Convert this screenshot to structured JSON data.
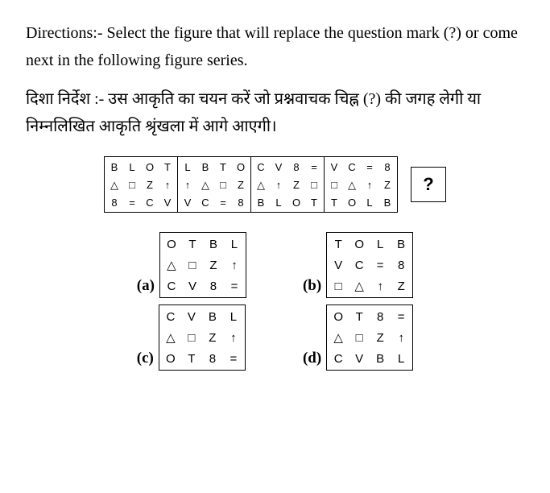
{
  "directions_en": "Directions:- Select the figure that will replace the question mark (?) or come next in the following figure series.",
  "directions_hi": "दिशा निर्देश :- उस आकृति का चयन करें जो प्रश्नवाचक चिह्न (?) की जगह लेगी या निम्नलिखित आकृति श्रृंखला में आगे आएगी।",
  "question_mark": "?",
  "series": [
    [
      "B",
      "L",
      "O",
      "T",
      "△",
      "□",
      "Z",
      "↑",
      "8",
      "=",
      "C",
      "V"
    ],
    [
      "L",
      "B",
      "T",
      "O",
      "↑",
      "△",
      "□",
      "Z",
      "V",
      "C",
      "=",
      "8"
    ],
    [
      "C",
      "V",
      "8",
      "=",
      "△",
      "↑",
      "Z",
      "□",
      "B",
      "L",
      "O",
      "T"
    ],
    [
      "V",
      "C",
      "=",
      "8",
      "□",
      "△",
      "↑",
      "Z",
      "T",
      "O",
      "L",
      "B"
    ]
  ],
  "options": {
    "a": {
      "label": "(a)",
      "grid": [
        "O",
        "T",
        "B",
        "L",
        "△",
        "□",
        "Z",
        "↑",
        "C",
        "V",
        "8",
        "="
      ]
    },
    "b": {
      "label": "(b)",
      "grid": [
        "T",
        "O",
        "L",
        "B",
        "V",
        "C",
        "=",
        "8",
        "□",
        "△",
        "↑",
        "Z"
      ]
    },
    "c": {
      "label": "(c)",
      "grid": [
        "C",
        "V",
        "B",
        "L",
        "△",
        "□",
        "Z",
        "↑",
        "O",
        "T",
        "8",
        "="
      ]
    },
    "d": {
      "label": "(d)",
      "grid": [
        "O",
        "T",
        "8",
        "=",
        "△",
        "□",
        "Z",
        "↑",
        "C",
        "V",
        "B",
        "L"
      ]
    }
  }
}
